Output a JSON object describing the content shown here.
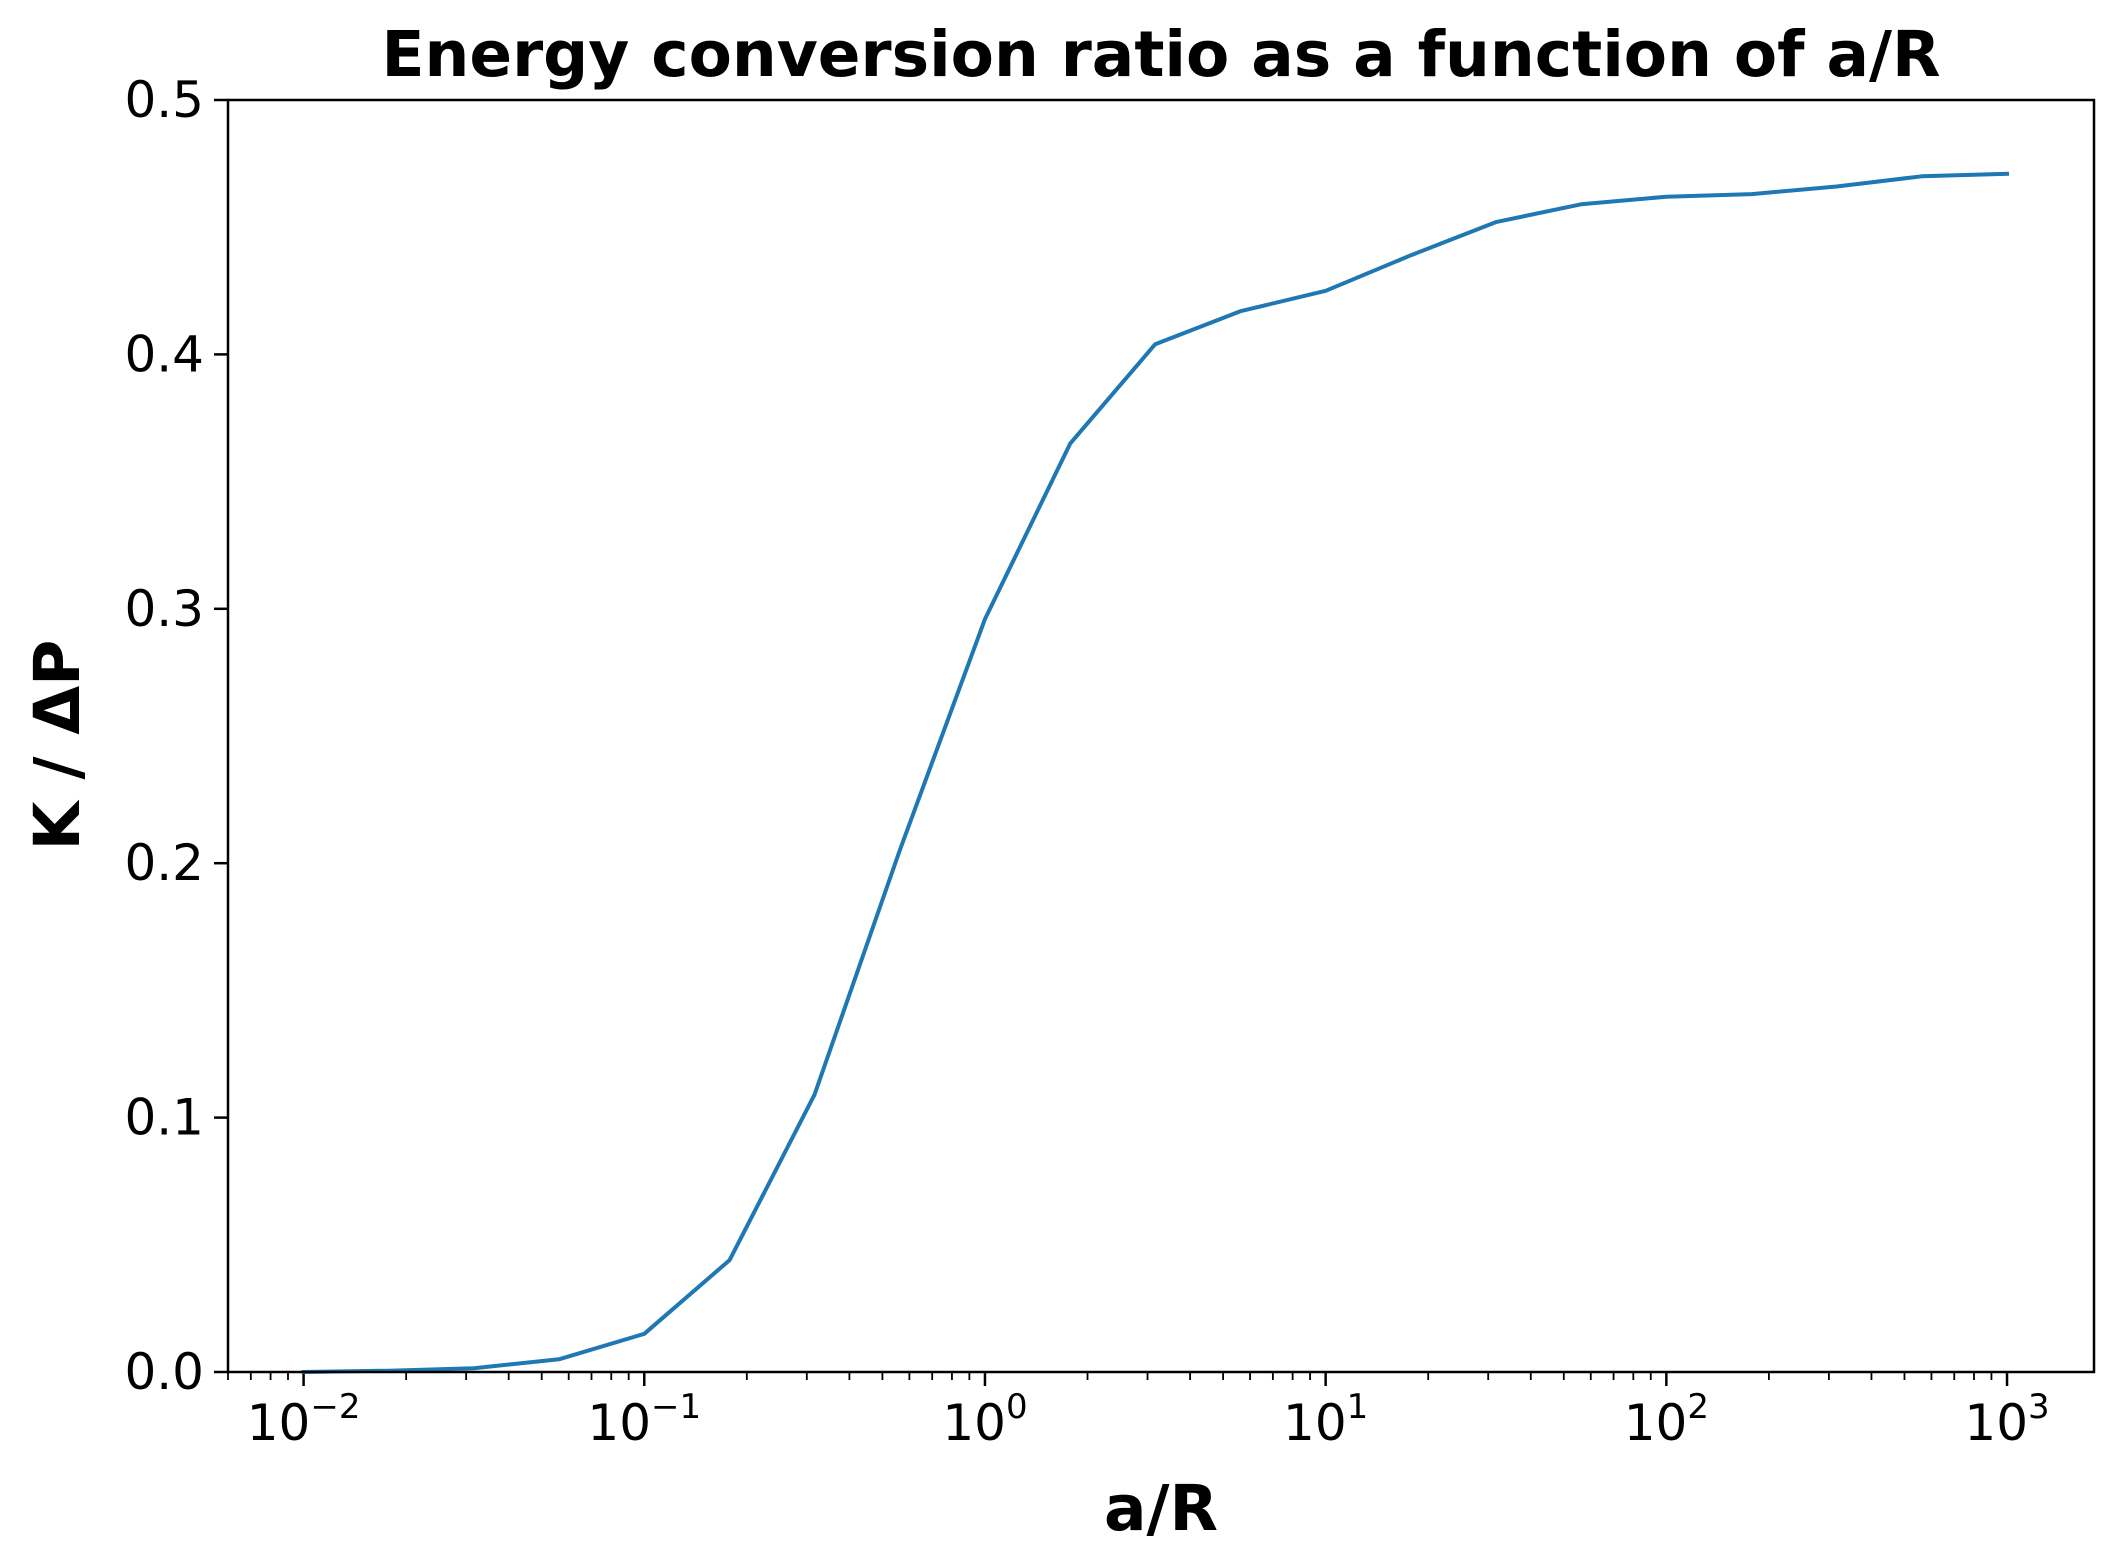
{
  "chart_data": {
    "type": "line",
    "title": "Energy conversion ratio as a function of a/R",
    "xlabel": "a/R",
    "ylabel": "K / ΔP",
    "xscale": "log",
    "xlim": [
      0.006,
      1800
    ],
    "ylim": [
      0.0,
      0.5
    ],
    "grid": false,
    "legend": "none",
    "x_ticks": [
      {
        "base": "10",
        "exp": "−2",
        "value": 0.01
      },
      {
        "base": "10",
        "exp": "−1",
        "value": 0.1
      },
      {
        "base": "10",
        "exp": "0",
        "value": 1
      },
      {
        "base": "10",
        "exp": "1",
        "value": 10
      },
      {
        "base": "10",
        "exp": "2",
        "value": 100
      },
      {
        "base": "10",
        "exp": "3",
        "value": 1000
      }
    ],
    "y_ticks": [
      {
        "label": "0.0",
        "value": 0.0
      },
      {
        "label": "0.1",
        "value": 0.1
      },
      {
        "label": "0.2",
        "value": 0.2
      },
      {
        "label": "0.3",
        "value": 0.3
      },
      {
        "label": "0.4",
        "value": 0.4
      },
      {
        "label": "0.5",
        "value": 0.5
      }
    ],
    "series": [
      {
        "color": "#1f77b4",
        "x": [
          0.01,
          0.0178,
          0.0316,
          0.0562,
          0.1,
          0.178,
          0.316,
          0.562,
          1.0,
          1.78,
          3.16,
          5.62,
          10,
          17.8,
          31.6,
          56.2,
          100,
          178,
          316,
          562,
          1000
        ],
        "y": [
          0.0,
          0.0005,
          0.0015,
          0.005,
          0.015,
          0.044,
          0.109,
          0.205,
          0.296,
          0.365,
          0.404,
          0.417,
          0.425,
          0.439,
          0.452,
          0.459,
          0.462,
          0.463,
          0.466,
          0.47,
          0.471
        ]
      }
    ]
  }
}
